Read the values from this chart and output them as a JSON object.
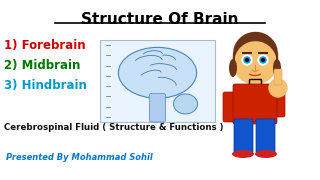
{
  "title": "Structure Of Brain",
  "title_color": "#000000",
  "title_fontsize": 11,
  "items": [
    {
      "text": "1) Forebrain",
      "color": "#cc0000"
    },
    {
      "text": "2) Midbrain",
      "color": "#007700"
    },
    {
      "text": "3) Hindbrain",
      "color": "#0099cc"
    }
  ],
  "items_fontsize": 8.5,
  "subtitle": "Cerebrospinal Fluid ( Structure & Functions )",
  "subtitle_color": "#111111",
  "subtitle_fontsize": 6.2,
  "footer": "Presented By Mohammad Sohil",
  "footer_color": "#0077cc",
  "footer_fontsize": 6.0,
  "bg_color": "#ffffff"
}
